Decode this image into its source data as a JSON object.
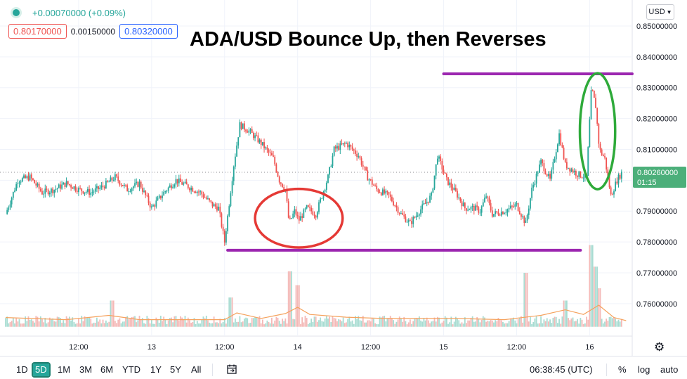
{
  "header": {
    "change": "+0.00070000 (+0.09%)",
    "bid": "0.80170000",
    "spread": "0.00150000",
    "ask": "0.80320000",
    "currency": "USD",
    "currency_icon": "chevron-down-icon"
  },
  "colors": {
    "up": "#26a69a",
    "down": "#ef5350",
    "support_resistance": "#9c27b0",
    "circle_red": "#e53935",
    "circle_green": "#2eaa3a",
    "volume_ma": "#f5a25d",
    "last_price_label": "#4caf7a"
  },
  "chart_data": {
    "type": "candlestick",
    "title": "ADA/USD Bounce Up, then Reverses",
    "symbol": "ADA/USD",
    "y_axis": {
      "min": 0.752,
      "max": 0.856,
      "ticks": [
        "0.85000000",
        "0.84000000",
        "0.83000000",
        "0.82000000",
        "0.81000000",
        "0.80000000",
        "0.79000000",
        "0.78000000",
        "0.77000000",
        "0.76000000"
      ],
      "tick_values": [
        0.85,
        0.84,
        0.83,
        0.82,
        0.81,
        0.8,
        0.79,
        0.78,
        0.77,
        0.76
      ]
    },
    "x_axis": {
      "labels": [
        "12:00",
        "13",
        "12:00",
        "14",
        "12:00",
        "15",
        "12:00",
        "16"
      ],
      "label_times": [
        12,
        24,
        36,
        48,
        60,
        72,
        84,
        96
      ]
    },
    "x_range": [
      0,
      103
    ],
    "price_series": [
      [
        0,
        0.789
      ],
      [
        2,
        0.8
      ],
      [
        4,
        0.801
      ],
      [
        6,
        0.796
      ],
      [
        8,
        0.797
      ],
      [
        10,
        0.799
      ],
      [
        12,
        0.797
      ],
      [
        14,
        0.796
      ],
      [
        16,
        0.798
      ],
      [
        18,
        0.801
      ],
      [
        20,
        0.797
      ],
      [
        22,
        0.799
      ],
      [
        24,
        0.791
      ],
      [
        26,
        0.796
      ],
      [
        28,
        0.8
      ],
      [
        30,
        0.798
      ],
      [
        32,
        0.796
      ],
      [
        34,
        0.792
      ],
      [
        35,
        0.791
      ],
      [
        36,
        0.78
      ],
      [
        37.5,
        0.805
      ],
      [
        38.5,
        0.818
      ],
      [
        40,
        0.816
      ],
      [
        42,
        0.812
      ],
      [
        44,
        0.807
      ],
      [
        45,
        0.8
      ],
      [
        46,
        0.797
      ],
      [
        46.6,
        0.786
      ],
      [
        47.5,
        0.79
      ],
      [
        48.2,
        0.787
      ],
      [
        49.5,
        0.791
      ],
      [
        51,
        0.789
      ],
      [
        52,
        0.795
      ],
      [
        53,
        0.801
      ],
      [
        54,
        0.81
      ],
      [
        56,
        0.812
      ],
      [
        58,
        0.808
      ],
      [
        59.5,
        0.801
      ],
      [
        61,
        0.797
      ],
      [
        63,
        0.795
      ],
      [
        65,
        0.789
      ],
      [
        66.5,
        0.786
      ],
      [
        68,
        0.79
      ],
      [
        70,
        0.795
      ],
      [
        71,
        0.808
      ],
      [
        72.5,
        0.8
      ],
      [
        74,
        0.796
      ],
      [
        75.5,
        0.791
      ],
      [
        77,
        0.791
      ],
      [
        78,
        0.79
      ],
      [
        79,
        0.795
      ],
      [
        80,
        0.789
      ],
      [
        82,
        0.79
      ],
      [
        84,
        0.792
      ],
      [
        85.5,
        0.786
      ],
      [
        86.5,
        0.797
      ],
      [
        88,
        0.806
      ],
      [
        89.5,
        0.8
      ],
      [
        91,
        0.815
      ],
      [
        92,
        0.805
      ],
      [
        94,
        0.802
      ],
      [
        95.5,
        0.801
      ],
      [
        96.3,
        0.83
      ],
      [
        97,
        0.824
      ],
      [
        97.6,
        0.81
      ],
      [
        98.5,
        0.807
      ],
      [
        99.5,
        0.795
      ],
      [
        100.5,
        0.8
      ],
      [
        101.3,
        0.8026
      ]
    ],
    "resistance_line": {
      "y": 0.8345,
      "x_start": 72,
      "x_end": 103,
      "color": "#9c27b0"
    },
    "support_line": {
      "y": 0.7773,
      "x_start": 36.5,
      "x_end": 94.5,
      "color": "#9c27b0"
    },
    "annotations": [
      {
        "shape": "ellipse",
        "color": "#e53935",
        "x_center": 48.2,
        "y_center": 0.7877,
        "x_radius": 7.2,
        "y_radius": 0.0095
      },
      {
        "shape": "ellipse",
        "color": "#2eaa3a",
        "x_center": 97.3,
        "y_center": 0.8159,
        "x_radius": 2.9,
        "y_radius": 0.0188
      }
    ],
    "volume": {
      "baseline_price_level": 0.7525,
      "spikes": [
        [
          17.5,
          0.761
        ],
        [
          37,
          0.762
        ],
        [
          46.8,
          0.7705
        ],
        [
          48,
          0.766
        ],
        [
          85.5,
          0.77
        ],
        [
          92,
          0.761
        ],
        [
          96.2,
          0.779
        ],
        [
          97,
          0.772
        ],
        [
          97.5,
          0.765
        ]
      ]
    },
    "volume_ma_series": [
      [
        0,
        0.7555
      ],
      [
        10,
        0.7548
      ],
      [
        17,
        0.7562
      ],
      [
        22,
        0.7548
      ],
      [
        36,
        0.7548
      ],
      [
        38,
        0.757
      ],
      [
        42,
        0.7552
      ],
      [
        46,
        0.7568
      ],
      [
        48,
        0.7588
      ],
      [
        50,
        0.7565
      ],
      [
        56,
        0.7556
      ],
      [
        62,
        0.7552
      ],
      [
        74,
        0.7552
      ],
      [
        82,
        0.7548
      ],
      [
        88,
        0.7562
      ],
      [
        92,
        0.758
      ],
      [
        95,
        0.7565
      ],
      [
        97.5,
        0.7595
      ],
      [
        100,
        0.7555
      ],
      [
        102,
        0.7545
      ]
    ],
    "last_price": {
      "value": "0.80260000",
      "countdown": "01:15"
    }
  },
  "footer": {
    "ranges": [
      "1D",
      "5D",
      "1M",
      "3M",
      "6M",
      "YTD",
      "1Y",
      "5Y",
      "All"
    ],
    "active_range": "5D",
    "compare_icon": "calendar-range-icon",
    "time": "06:38:45 (UTC)",
    "percent": "%",
    "log": "log",
    "auto": "auto",
    "settings_icon": "gear-icon"
  }
}
